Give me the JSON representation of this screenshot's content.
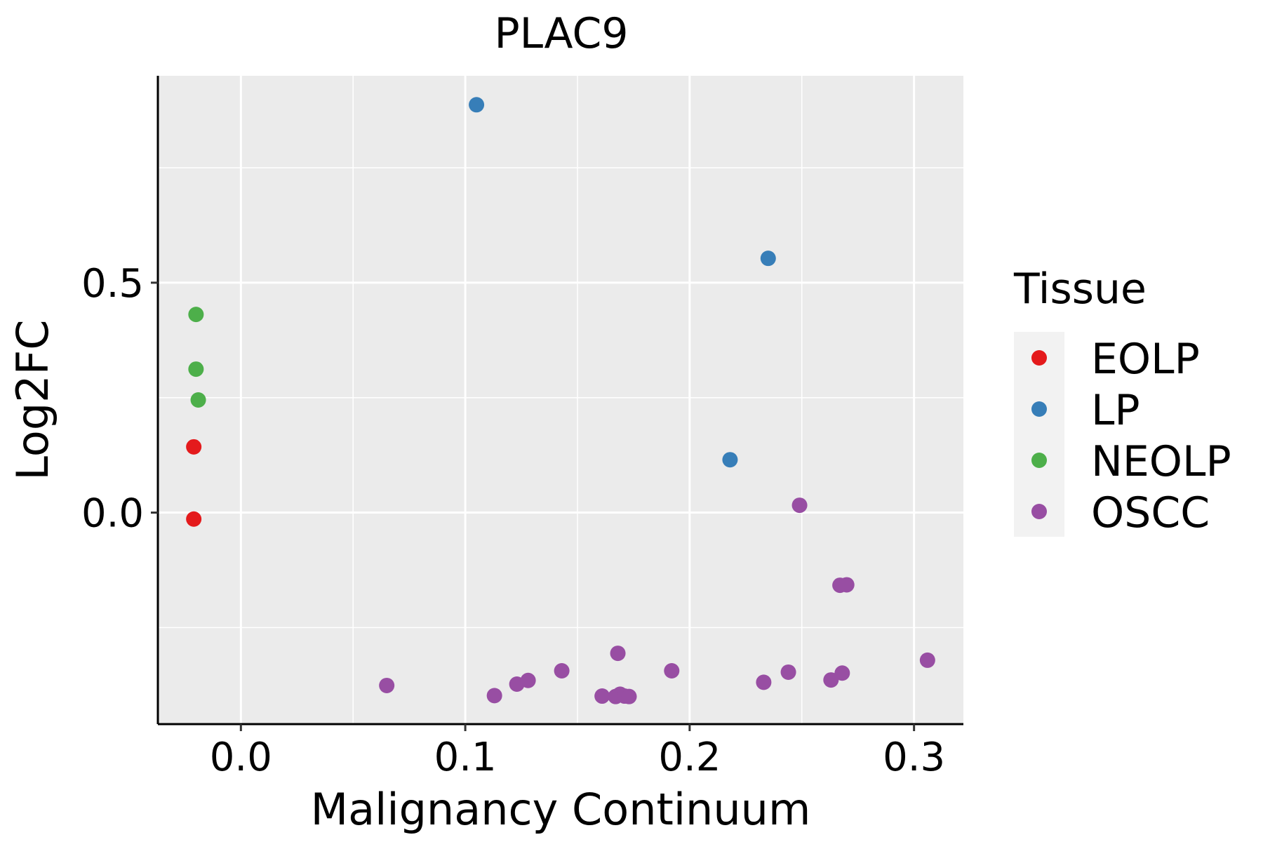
{
  "chart_data": {
    "type": "scatter",
    "title": "PLAC9",
    "xlabel": "Malignancy Continuum",
    "ylabel": "Log2FC",
    "xlim": [
      -0.037,
      0.322
    ],
    "ylim": [
      -0.46,
      0.95
    ],
    "x_ticks": [
      0.0,
      0.1,
      0.2,
      0.3
    ],
    "x_tick_labels": [
      "0.0",
      "0.1",
      "0.2",
      "0.3"
    ],
    "x_minor": [
      0.05,
      0.15,
      0.25
    ],
    "y_ticks": [
      0.0,
      0.5
    ],
    "y_tick_labels": [
      "0.0",
      "0.5"
    ],
    "y_minor": [
      -0.25,
      0.25,
      0.75
    ],
    "grid": true,
    "legend": {
      "title": "Tissue",
      "position": "right",
      "entries": [
        "EOLP",
        "LP",
        "NEOLP",
        "OSCC"
      ]
    },
    "colors": {
      "EOLP": "#E41A1C",
      "LP": "#377EB8",
      "NEOLP": "#4DAF4A",
      "OSCC": "#984EA3",
      "panel": "#EBEBEB",
      "grid": "#FFFFFF",
      "legend_key_bg": "#F2F2F2"
    },
    "series": [
      {
        "name": "EOLP",
        "points": [
          [
            -0.021,
            0.143
          ],
          [
            -0.021,
            -0.014
          ]
        ]
      },
      {
        "name": "LP",
        "points": [
          [
            0.105,
            0.887
          ],
          [
            0.235,
            0.553
          ],
          [
            0.218,
            0.115
          ]
        ]
      },
      {
        "name": "NEOLP",
        "points": [
          [
            -0.02,
            0.431
          ],
          [
            -0.02,
            0.312
          ],
          [
            -0.019,
            0.245
          ]
        ]
      },
      {
        "name": "OSCC",
        "points": [
          [
            0.249,
            0.016
          ],
          [
            0.267,
            -0.158
          ],
          [
            0.27,
            -0.157
          ],
          [
            0.065,
            -0.376
          ],
          [
            0.113,
            -0.398
          ],
          [
            0.123,
            -0.373
          ],
          [
            0.128,
            -0.365
          ],
          [
            0.143,
            -0.344
          ],
          [
            0.161,
            -0.399
          ],
          [
            0.167,
            -0.4
          ],
          [
            0.168,
            -0.306
          ],
          [
            0.169,
            -0.395
          ],
          [
            0.171,
            -0.399
          ],
          [
            0.173,
            -0.4
          ],
          [
            0.192,
            -0.344
          ],
          [
            0.233,
            -0.369
          ],
          [
            0.244,
            -0.347
          ],
          [
            0.263,
            -0.364
          ],
          [
            0.268,
            -0.349
          ],
          [
            0.306,
            -0.321
          ]
        ]
      }
    ]
  }
}
